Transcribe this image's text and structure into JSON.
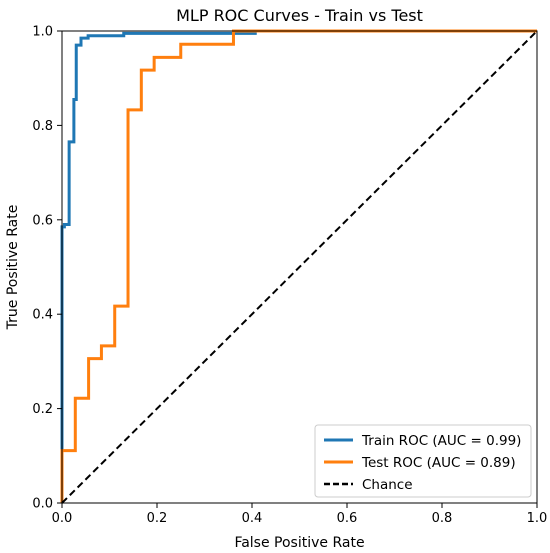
{
  "chart_data": {
    "type": "line",
    "title": "MLP ROC Curves - Train vs Test",
    "xlabel": "False Positive Rate",
    "ylabel": "True Positive Rate",
    "xlim": [
      0,
      1
    ],
    "ylim": [
      0,
      1
    ],
    "xticks": [
      "0.0",
      "0.2",
      "0.4",
      "0.6",
      "0.8",
      "1.0"
    ],
    "yticks": [
      "0.0",
      "0.2",
      "0.4",
      "0.6",
      "0.8",
      "1.0"
    ],
    "grid": false,
    "legend_position": "lower-right",
    "series": [
      {
        "name": "Train ROC (AUC = 0.99)",
        "color": "#1f77b4",
        "style": "solid",
        "x": [
          0,
          0,
          0.005,
          0.005,
          0.015,
          0.015,
          0.025,
          0.025,
          0.03,
          0.03,
          0.04,
          0.04,
          0.055,
          0.055,
          0.07,
          0.07,
          0.13,
          0.13,
          0.41
        ],
        "y": [
          0,
          0.585,
          0.585,
          0.59,
          0.59,
          0.765,
          0.765,
          0.855,
          0.855,
          0.97,
          0.97,
          0.985,
          0.985,
          0.99,
          0.99,
          0.99,
          0.99,
          0.995,
          0.995
        ]
      },
      {
        "name": "Test ROC (AUC = 0.89)",
        "color": "#ff7f0e",
        "style": "solid",
        "x": [
          0,
          0,
          0.028,
          0.028,
          0.056,
          0.056,
          0.083,
          0.083,
          0.111,
          0.111,
          0.139,
          0.139,
          0.167,
          0.167,
          0.194,
          0.194,
          0.25,
          0.25,
          0.361,
          0.361,
          1.0
        ],
        "y": [
          0,
          0.111,
          0.111,
          0.222,
          0.222,
          0.306,
          0.306,
          0.333,
          0.333,
          0.417,
          0.417,
          0.833,
          0.833,
          0.917,
          0.917,
          0.944,
          0.944,
          0.972,
          0.972,
          1.0,
          1.0
        ]
      },
      {
        "name": "Chance",
        "color": "#000000",
        "style": "dashed",
        "x": [
          0,
          1
        ],
        "y": [
          0,
          1
        ]
      }
    ]
  }
}
